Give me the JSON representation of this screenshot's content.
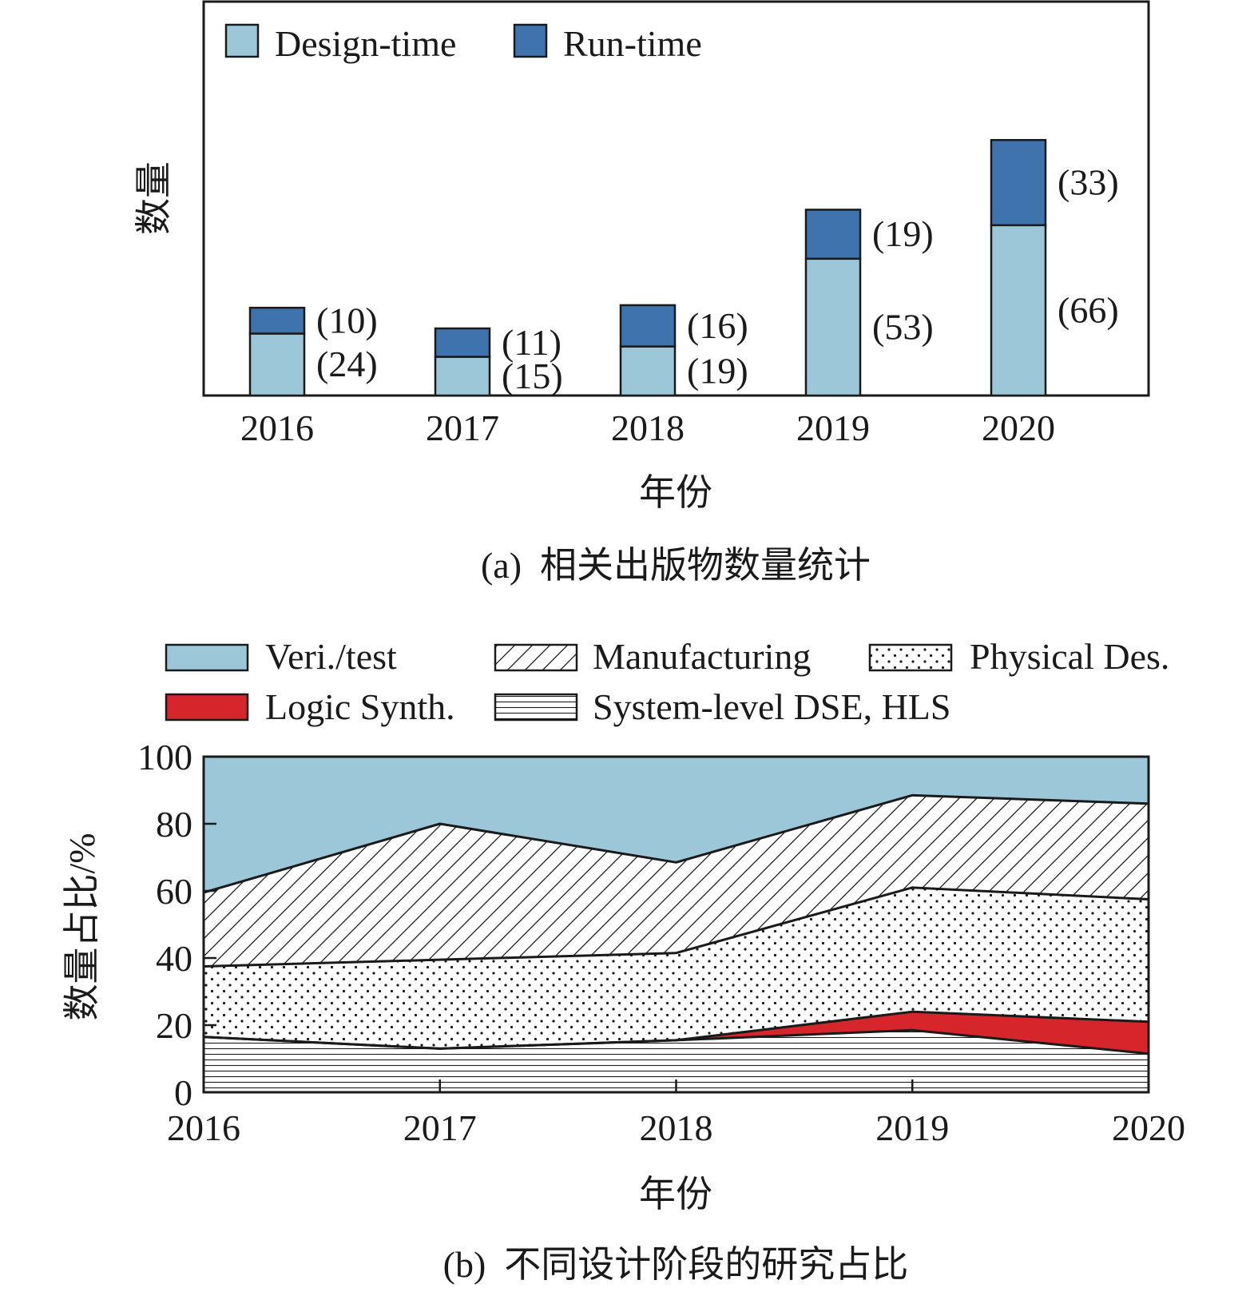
{
  "colors": {
    "design_time": "#9cc7d8",
    "run_time": "#3f73ae",
    "veri_test": "#9cc7d8",
    "logic_synth": "#d6262c",
    "outline": "#1a1a1a"
  },
  "chart_data": [
    {
      "type": "bar",
      "stacked": true,
      "caption": "(a)  相关出版物数量统计",
      "xlabel": "年份",
      "ylabel": "数量",
      "categories": [
        "2016",
        "2017",
        "2018",
        "2019",
        "2020"
      ],
      "series": [
        {
          "name": "Design-time",
          "values": [
            24,
            15,
            19,
            53,
            66
          ],
          "labels": [
            "(24)",
            "(15)",
            "(19)",
            "(53)",
            "(66)"
          ]
        },
        {
          "name": "Run-time",
          "values": [
            10,
            11,
            16,
            19,
            33
          ],
          "labels": [
            "(10)",
            "(11)",
            "(16)",
            "(19)",
            "(33)"
          ]
        }
      ],
      "legend_position": "top-left",
      "y_axis_ticks_shown": false
    },
    {
      "type": "area",
      "stacked": true,
      "caption": "(b)  不同设计阶段的研究占比",
      "xlabel": "年份",
      "ylabel": "数量占比/%",
      "x": [
        "2016",
        "2017",
        "2018",
        "2019",
        "2020"
      ],
      "yticks": [
        "0",
        "20",
        "40",
        "60",
        "80",
        "100"
      ],
      "ylim": [
        0,
        100
      ],
      "series": [
        {
          "name": "System-level DSE, HLS",
          "values": [
            16.5,
            13,
            15.5,
            18.5,
            11.5
          ],
          "pattern": "horizontal-lines"
        },
        {
          "name": "Logic Synth.",
          "values": [
            0,
            0,
            0,
            5.5,
            9.5
          ],
          "pattern": "solid-red"
        },
        {
          "name": "Physical Des.",
          "values": [
            21,
            26.5,
            26,
            37,
            36.5
          ],
          "pattern": "dots"
        },
        {
          "name": "Manufacturing",
          "values": [
            22,
            40.5,
            27,
            27.5,
            28.5
          ],
          "pattern": "diagonal-hatch"
        },
        {
          "name": "Veri./test",
          "values": [
            40.5,
            20,
            31.5,
            11.5,
            14
          ],
          "pattern": "solid-blue"
        }
      ],
      "legend_order": [
        "Veri./test",
        "Manufacturing",
        "Physical Des.",
        "Logic Synth.",
        "System-level DSE, HLS"
      ],
      "legend_position": "top"
    }
  ]
}
